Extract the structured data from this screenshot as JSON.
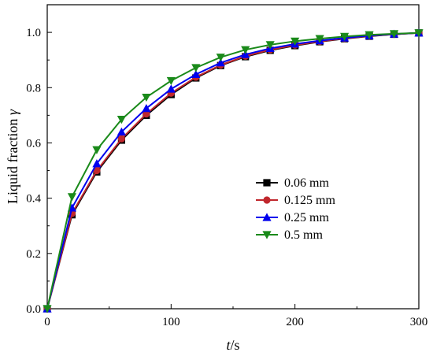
{
  "chart_data": {
    "type": "line",
    "xlabel_var": "t",
    "xlabel_unit": "/s",
    "ylabel_text": "Liquid fraction ",
    "ylabel_var": "γ",
    "xlim": [
      0,
      300
    ],
    "ylim": [
      0,
      1.1
    ],
    "xticks": [
      {
        "value": 0,
        "label": "0"
      },
      {
        "value": 100,
        "label": "100"
      },
      {
        "value": 200,
        "label": "200"
      },
      {
        "value": 300,
        "label": "300"
      }
    ],
    "yticks": [
      {
        "value": 0.0,
        "label": "0.0"
      },
      {
        "value": 0.2,
        "label": "0.2"
      },
      {
        "value": 0.4,
        "label": "0.4"
      },
      {
        "value": 0.6,
        "label": "0.6"
      },
      {
        "value": 0.8,
        "label": "0.8"
      },
      {
        "value": 1.0,
        "label": "1.0"
      }
    ],
    "grid": false,
    "legend_position": "center-right",
    "x": [
      0,
      20,
      40,
      60,
      80,
      100,
      120,
      140,
      160,
      180,
      200,
      220,
      240,
      260,
      280,
      300
    ],
    "series": [
      {
        "name": "0.06 mm",
        "color": "#000000",
        "marker": "square",
        "values": [
          0.0,
          0.34,
          0.495,
          0.61,
          0.7,
          0.775,
          0.835,
          0.88,
          0.912,
          0.935,
          0.952,
          0.966,
          0.977,
          0.986,
          0.993,
          0.998
        ]
      },
      {
        "name": "0.125 mm",
        "color": "#c0272d",
        "marker": "circle",
        "values": [
          0.0,
          0.345,
          0.5,
          0.615,
          0.705,
          0.78,
          0.838,
          0.882,
          0.914,
          0.937,
          0.954,
          0.967,
          0.978,
          0.987,
          0.993,
          0.998
        ]
      },
      {
        "name": "0.25 mm",
        "color": "#0000ee",
        "marker": "triangle-up",
        "values": [
          0.0,
          0.365,
          0.525,
          0.64,
          0.725,
          0.795,
          0.848,
          0.89,
          0.92,
          0.942,
          0.958,
          0.97,
          0.98,
          0.988,
          0.994,
          0.998
        ]
      },
      {
        "name": "0.5 mm",
        "color": "#1a8a1a",
        "marker": "triangle-down",
        "values": [
          0.0,
          0.405,
          0.575,
          0.685,
          0.765,
          0.825,
          0.872,
          0.91,
          0.937,
          0.955,
          0.968,
          0.977,
          0.985,
          0.991,
          0.995,
          0.998
        ]
      }
    ]
  }
}
